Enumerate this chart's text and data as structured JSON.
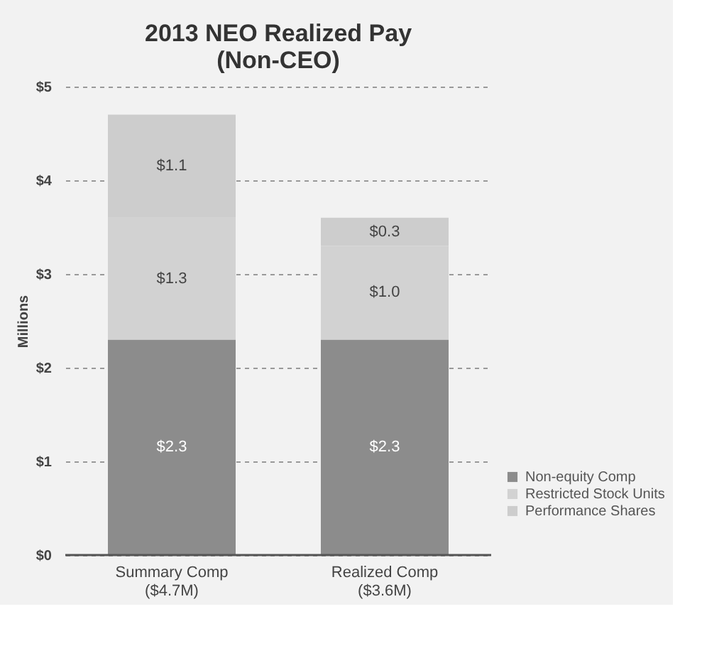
{
  "chart_data": {
    "type": "bar",
    "title": [
      "2013 NEO Realized Pay",
      "(Non-CEO)"
    ],
    "ylabel": "Millions",
    "categories": [
      "Summary Comp\n($4.7M)",
      "Realized Comp\n($3.6M)"
    ],
    "stacked": true,
    "series": [
      {
        "name": "Non-equity Comp",
        "color": "#8c8c8c",
        "values": [
          2.3,
          2.3
        ],
        "value_labels": [
          "$2.3",
          "$2.3"
        ]
      },
      {
        "name": "Restricted Stock Units",
        "color": "#d2d2d2",
        "values": [
          1.3,
          1.0
        ],
        "value_labels": [
          "$1.3",
          "$1.0"
        ]
      },
      {
        "name": "Performance Shares",
        "color": "#cdcdcd",
        "values": [
          1.1,
          0.3
        ],
        "value_labels": [
          "$1.1",
          "$0.3"
        ]
      }
    ],
    "ylim": [
      0,
      5
    ],
    "yticks": [
      {
        "value": 0,
        "label": "$0"
      },
      {
        "value": 1,
        "label": "$1"
      },
      {
        "value": 2,
        "label": "$2"
      },
      {
        "value": 3,
        "label": "$3"
      },
      {
        "value": 4,
        "label": "$4"
      },
      {
        "value": 5,
        "label": "$5"
      }
    ],
    "grid": "y",
    "legend": "bottom right"
  }
}
